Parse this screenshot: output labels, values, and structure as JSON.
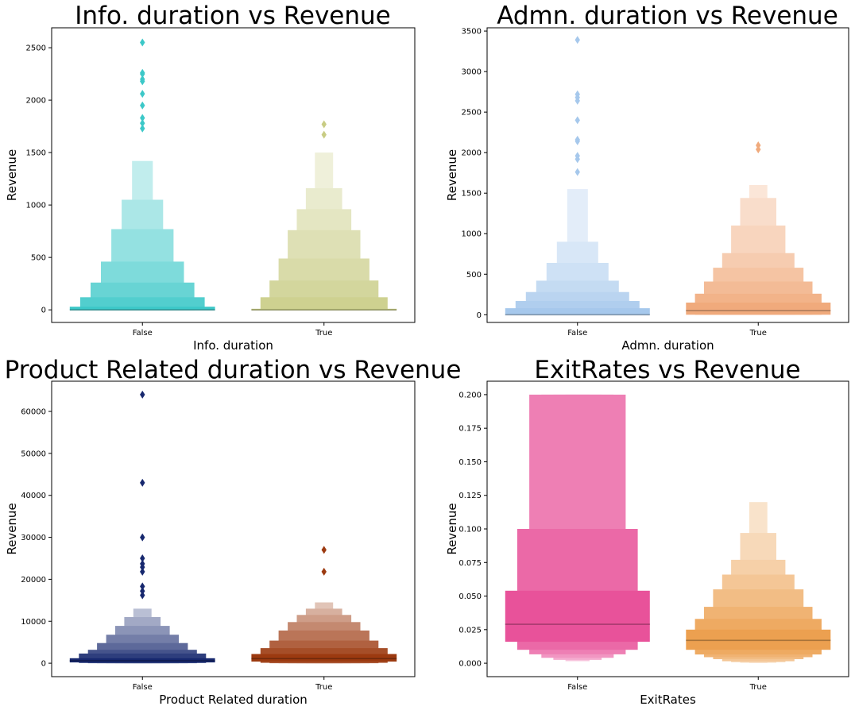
{
  "chart_data": [
    {
      "type": "boxen",
      "title": "Info. duration vs Revenue",
      "xlabel": "Info. duration",
      "ylabel": "Revenue",
      "categories": [
        "False",
        "True"
      ],
      "ylim": [
        -120,
        2690
      ],
      "yticks": [
        0,
        500,
        1000,
        1500,
        2000,
        2500
      ],
      "colors": [
        "#3cc8c8",
        "#c8cc84"
      ],
      "series": [
        {
          "category": "False",
          "median": 0,
          "boxes": [
            [
              0,
              30
            ],
            [
              0,
              120
            ],
            [
              0,
              260
            ],
            [
              0,
              460
            ],
            [
              0,
              770
            ],
            [
              0,
              1050
            ],
            [
              0,
              1420
            ]
          ],
          "outliers": [
            1730,
            1780,
            1830,
            1950,
            2060,
            2180,
            2200,
            2250,
            2260,
            2550
          ]
        },
        {
          "category": "True",
          "median": 0,
          "boxes": [
            [
              0,
              10
            ],
            [
              0,
              120
            ],
            [
              0,
              280
            ],
            [
              0,
              490
            ],
            [
              0,
              760
            ],
            [
              0,
              960
            ],
            [
              0,
              1160
            ],
            [
              0,
              1500
            ]
          ],
          "outliers": [
            1670,
            1770
          ]
        }
      ]
    },
    {
      "type": "boxen",
      "title": "Admn. duration vs Revenue",
      "xlabel": "Admn. duration",
      "ylabel": "Revenue",
      "categories": [
        "False",
        "True"
      ],
      "ylim": [
        -95,
        3540
      ],
      "yticks": [
        0,
        500,
        1000,
        1500,
        2000,
        2500,
        3000,
        3500
      ],
      "colors": [
        "#a6c8ec",
        "#f0aa7c"
      ],
      "series": [
        {
          "category": "False",
          "median": 0,
          "boxes": [
            [
              0,
              80
            ],
            [
              0,
              170
            ],
            [
              0,
              280
            ],
            [
              0,
              420
            ],
            [
              0,
              640
            ],
            [
              0,
              900
            ],
            [
              0,
              1550
            ]
          ],
          "outliers": [
            1760,
            1920,
            1960,
            2140,
            2160,
            2400,
            2640,
            2680,
            2720,
            3390
          ]
        },
        {
          "category": "True",
          "median": 50,
          "boxes": [
            [
              0,
              150
            ],
            [
              0,
              260
            ],
            [
              0,
              410
            ],
            [
              0,
              580
            ],
            [
              0,
              760
            ],
            [
              0,
              1100
            ],
            [
              0,
              1440
            ],
            [
              0,
              1600
            ]
          ],
          "outliers": [
            2040,
            2090
          ]
        }
      ]
    },
    {
      "type": "boxen",
      "title": "Product Related duration vs Revenue",
      "xlabel": "Product Related duration",
      "ylabel": "Revenue",
      "categories": [
        "False",
        "True"
      ],
      "ylim": [
        -3200,
        67200
      ],
      "yticks": [
        0,
        10000,
        20000,
        30000,
        40000,
        50000,
        60000
      ],
      "colors": [
        "#17286e",
        "#9c3a10"
      ],
      "series": [
        {
          "category": "False",
          "median": 600,
          "boxes": [
            [
              200,
              1200
            ],
            [
              50,
              2300
            ],
            [
              0,
              3200
            ],
            [
              0,
              4800
            ],
            [
              0,
              6800
            ],
            [
              0,
              8900
            ],
            [
              0,
              11000
            ],
            [
              0,
              13000
            ]
          ],
          "outliers": [
            16200,
            17200,
            18300,
            21800,
            22900,
            23700,
            25000,
            30000,
            43000,
            64000
          ]
        },
        {
          "category": "True",
          "median": 1100,
          "boxes": [
            [
              400,
              2200
            ],
            [
              100,
              3600
            ],
            [
              0,
              5400
            ],
            [
              0,
              7800
            ],
            [
              0,
              9800
            ],
            [
              0,
              11500
            ],
            [
              0,
              13000
            ],
            [
              0,
              14500
            ]
          ],
          "outliers": [
            21800,
            27000
          ]
        }
      ]
    },
    {
      "type": "boxen",
      "title": "ExitRates vs Revenue",
      "xlabel": "ExitRates",
      "ylabel": "Revenue",
      "categories": [
        "False",
        "True"
      ],
      "ylim": [
        -0.01,
        0.21
      ],
      "yticks": [
        0.0,
        0.025,
        0.05,
        0.075,
        0.1,
        0.125,
        0.15,
        0.175,
        0.2
      ],
      "ytick_labels": [
        "0.000",
        "0.025",
        "0.050",
        "0.075",
        "0.100",
        "0.125",
        "0.150",
        "0.175",
        "0.200"
      ],
      "colors": [
        "#e8529a",
        "#eca050"
      ],
      "series": [
        {
          "category": "False",
          "median": 0.029,
          "boxes": [
            [
              0.016,
              0.054
            ],
            [
              0.01,
              0.1
            ],
            [
              0.0066,
              0.2
            ],
            [
              0.004,
              0.2
            ],
            [
              0.0025,
              0.2
            ],
            [
              0.0015,
              0.2
            ]
          ],
          "outliers": []
        },
        {
          "category": "True",
          "median": 0.017,
          "boxes": [
            [
              0.01,
              0.025
            ],
            [
              0.0065,
              0.033
            ],
            [
              0.0045,
              0.042
            ],
            [
              0.003,
              0.055
            ],
            [
              0.0015,
              0.066
            ],
            [
              0.0008,
              0.077
            ],
            [
              0.0004,
              0.097
            ],
            [
              0.0002,
              0.12
            ]
          ],
          "outliers": []
        }
      ]
    }
  ]
}
